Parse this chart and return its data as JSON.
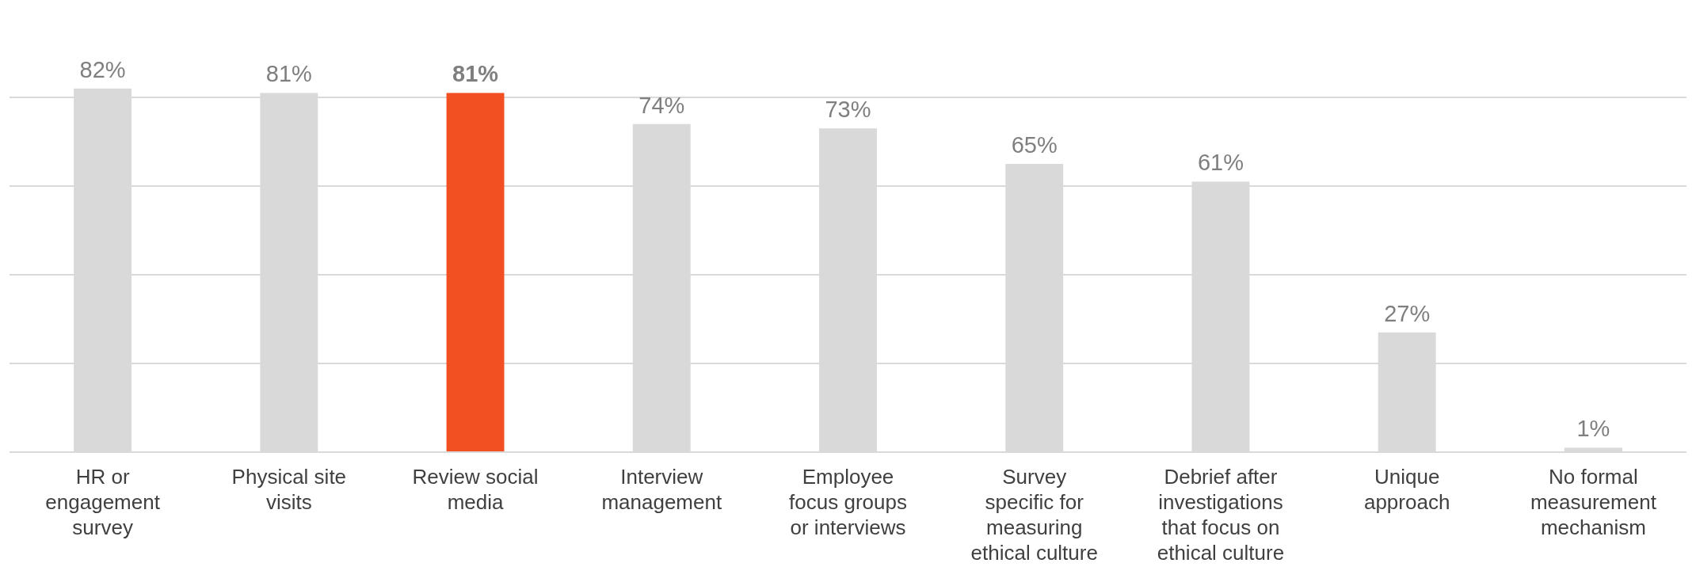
{
  "chart_data": {
    "type": "bar",
    "categories": [
      "HR or engagement survey",
      "Physical site visits",
      "Review social media",
      "Interview management",
      "Employee focus groups or interviews",
      "Survey specific for measuring ethical culture",
      "Debrief after investigations that focus on ethical culture",
      "Unique approach",
      "No formal measurement mechanism"
    ],
    "values": [
      82,
      81,
      81,
      74,
      73,
      65,
      61,
      27,
      1
    ],
    "colors": [
      "#d9d9d9",
      "#d9d9d9",
      "#f24f23",
      "#d9d9d9",
      "#d9d9d9",
      "#d9d9d9",
      "#d9d9d9",
      "#d9d9d9",
      "#d9d9d9"
    ],
    "value_labels": [
      "82%",
      "81%",
      "81%",
      "74%",
      "73%",
      "65%",
      "61%",
      "27%",
      "1%"
    ],
    "yticks": [
      {
        "value": 0,
        "label": null
      },
      {
        "value": 20,
        "label": null
      },
      {
        "value": 40,
        "label": null
      },
      {
        "value": 60,
        "label": null
      },
      {
        "value": 80,
        "label": null
      }
    ],
    "grid": "y",
    "tick_labels": "x"
  }
}
